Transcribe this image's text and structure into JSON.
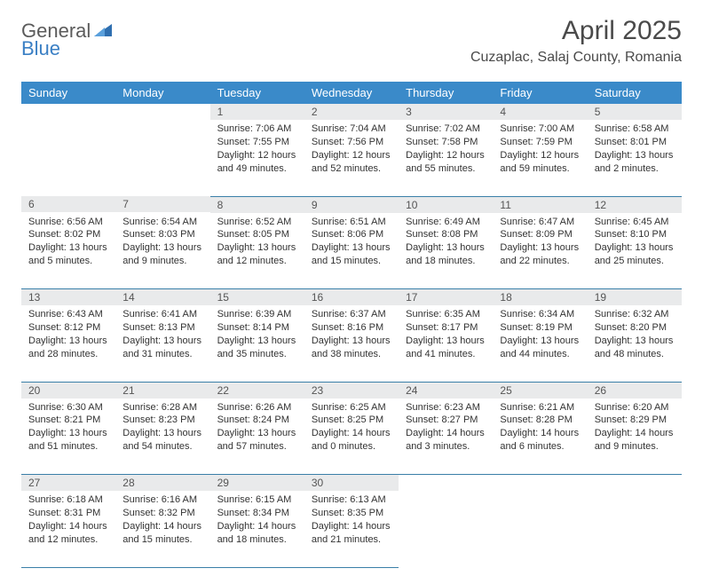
{
  "brand": {
    "part1": "General",
    "part2": "Blue"
  },
  "title": "April 2025",
  "location": "Cuzaplac, Salaj County, Romania",
  "colors": {
    "header_bg": "#3a8ac9",
    "header_text": "#ffffff",
    "daynum_bg": "#e9eaeb",
    "row_border": "#3a7fa8",
    "brand_gray": "#5b5b5b",
    "brand_blue": "#3a7fc4",
    "text": "#333333",
    "title": "#4a4a4a"
  },
  "weekdays": [
    "Sunday",
    "Monday",
    "Tuesday",
    "Wednesday",
    "Thursday",
    "Friday",
    "Saturday"
  ],
  "weeks": [
    [
      null,
      null,
      {
        "n": "1",
        "sr": "Sunrise: 7:06 AM",
        "ss": "Sunset: 7:55 PM",
        "dl": "Daylight: 12 hours and 49 minutes."
      },
      {
        "n": "2",
        "sr": "Sunrise: 7:04 AM",
        "ss": "Sunset: 7:56 PM",
        "dl": "Daylight: 12 hours and 52 minutes."
      },
      {
        "n": "3",
        "sr": "Sunrise: 7:02 AM",
        "ss": "Sunset: 7:58 PM",
        "dl": "Daylight: 12 hours and 55 minutes."
      },
      {
        "n": "4",
        "sr": "Sunrise: 7:00 AM",
        "ss": "Sunset: 7:59 PM",
        "dl": "Daylight: 12 hours and 59 minutes."
      },
      {
        "n": "5",
        "sr": "Sunrise: 6:58 AM",
        "ss": "Sunset: 8:01 PM",
        "dl": "Daylight: 13 hours and 2 minutes."
      }
    ],
    [
      {
        "n": "6",
        "sr": "Sunrise: 6:56 AM",
        "ss": "Sunset: 8:02 PM",
        "dl": "Daylight: 13 hours and 5 minutes."
      },
      {
        "n": "7",
        "sr": "Sunrise: 6:54 AM",
        "ss": "Sunset: 8:03 PM",
        "dl": "Daylight: 13 hours and 9 minutes."
      },
      {
        "n": "8",
        "sr": "Sunrise: 6:52 AM",
        "ss": "Sunset: 8:05 PM",
        "dl": "Daylight: 13 hours and 12 minutes."
      },
      {
        "n": "9",
        "sr": "Sunrise: 6:51 AM",
        "ss": "Sunset: 8:06 PM",
        "dl": "Daylight: 13 hours and 15 minutes."
      },
      {
        "n": "10",
        "sr": "Sunrise: 6:49 AM",
        "ss": "Sunset: 8:08 PM",
        "dl": "Daylight: 13 hours and 18 minutes."
      },
      {
        "n": "11",
        "sr": "Sunrise: 6:47 AM",
        "ss": "Sunset: 8:09 PM",
        "dl": "Daylight: 13 hours and 22 minutes."
      },
      {
        "n": "12",
        "sr": "Sunrise: 6:45 AM",
        "ss": "Sunset: 8:10 PM",
        "dl": "Daylight: 13 hours and 25 minutes."
      }
    ],
    [
      {
        "n": "13",
        "sr": "Sunrise: 6:43 AM",
        "ss": "Sunset: 8:12 PM",
        "dl": "Daylight: 13 hours and 28 minutes."
      },
      {
        "n": "14",
        "sr": "Sunrise: 6:41 AM",
        "ss": "Sunset: 8:13 PM",
        "dl": "Daylight: 13 hours and 31 minutes."
      },
      {
        "n": "15",
        "sr": "Sunrise: 6:39 AM",
        "ss": "Sunset: 8:14 PM",
        "dl": "Daylight: 13 hours and 35 minutes."
      },
      {
        "n": "16",
        "sr": "Sunrise: 6:37 AM",
        "ss": "Sunset: 8:16 PM",
        "dl": "Daylight: 13 hours and 38 minutes."
      },
      {
        "n": "17",
        "sr": "Sunrise: 6:35 AM",
        "ss": "Sunset: 8:17 PM",
        "dl": "Daylight: 13 hours and 41 minutes."
      },
      {
        "n": "18",
        "sr": "Sunrise: 6:34 AM",
        "ss": "Sunset: 8:19 PM",
        "dl": "Daylight: 13 hours and 44 minutes."
      },
      {
        "n": "19",
        "sr": "Sunrise: 6:32 AM",
        "ss": "Sunset: 8:20 PM",
        "dl": "Daylight: 13 hours and 48 minutes."
      }
    ],
    [
      {
        "n": "20",
        "sr": "Sunrise: 6:30 AM",
        "ss": "Sunset: 8:21 PM",
        "dl": "Daylight: 13 hours and 51 minutes."
      },
      {
        "n": "21",
        "sr": "Sunrise: 6:28 AM",
        "ss": "Sunset: 8:23 PM",
        "dl": "Daylight: 13 hours and 54 minutes."
      },
      {
        "n": "22",
        "sr": "Sunrise: 6:26 AM",
        "ss": "Sunset: 8:24 PM",
        "dl": "Daylight: 13 hours and 57 minutes."
      },
      {
        "n": "23",
        "sr": "Sunrise: 6:25 AM",
        "ss": "Sunset: 8:25 PM",
        "dl": "Daylight: 14 hours and 0 minutes."
      },
      {
        "n": "24",
        "sr": "Sunrise: 6:23 AM",
        "ss": "Sunset: 8:27 PM",
        "dl": "Daylight: 14 hours and 3 minutes."
      },
      {
        "n": "25",
        "sr": "Sunrise: 6:21 AM",
        "ss": "Sunset: 8:28 PM",
        "dl": "Daylight: 14 hours and 6 minutes."
      },
      {
        "n": "26",
        "sr": "Sunrise: 6:20 AM",
        "ss": "Sunset: 8:29 PM",
        "dl": "Daylight: 14 hours and 9 minutes."
      }
    ],
    [
      {
        "n": "27",
        "sr": "Sunrise: 6:18 AM",
        "ss": "Sunset: 8:31 PM",
        "dl": "Daylight: 14 hours and 12 minutes."
      },
      {
        "n": "28",
        "sr": "Sunrise: 6:16 AM",
        "ss": "Sunset: 8:32 PM",
        "dl": "Daylight: 14 hours and 15 minutes."
      },
      {
        "n": "29",
        "sr": "Sunrise: 6:15 AM",
        "ss": "Sunset: 8:34 PM",
        "dl": "Daylight: 14 hours and 18 minutes."
      },
      {
        "n": "30",
        "sr": "Sunrise: 6:13 AM",
        "ss": "Sunset: 8:35 PM",
        "dl": "Daylight: 14 hours and 21 minutes."
      },
      null,
      null,
      null
    ]
  ]
}
